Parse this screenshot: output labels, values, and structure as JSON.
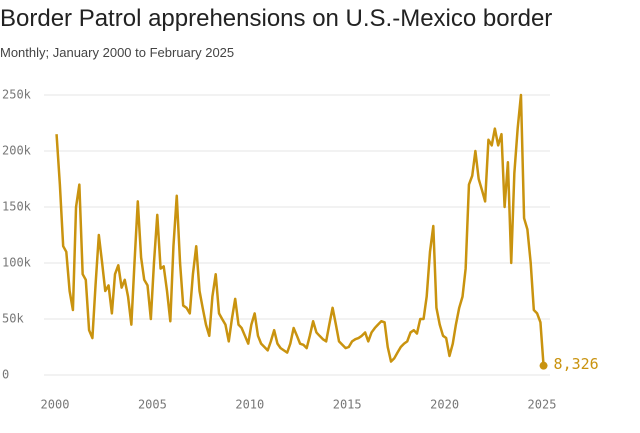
{
  "chart_data": {
    "type": "line",
    "title": "Border Patrol apprehensions on U.S.-Mexico border",
    "subtitle": "Monthly; January 2000 to February 2025",
    "color": "#c9930f",
    "grid": true,
    "xlim": [
      2000,
      2025
    ],
    "xticks": [
      2000,
      2005,
      2010,
      2015,
      2020,
      2025
    ],
    "ylim": [
      0,
      250000
    ],
    "yticks": [
      0,
      {
        "value": 50000,
        "label": "50k"
      },
      {
        "value": 100000,
        "label": "100k"
      },
      {
        "value": 150000,
        "label": "150k"
      },
      {
        "value": 200000,
        "label": "200k"
      },
      {
        "value": 250000,
        "label": "250k"
      }
    ],
    "x": [
      2000.08,
      2000.25,
      2000.42,
      2000.58,
      2000.75,
      2000.92,
      2001.08,
      2001.25,
      2001.42,
      2001.58,
      2001.75,
      2001.92,
      2002.08,
      2002.25,
      2002.42,
      2002.58,
      2002.75,
      2002.92,
      2003.08,
      2003.25,
      2003.42,
      2003.58,
      2003.75,
      2003.92,
      2004.08,
      2004.25,
      2004.42,
      2004.58,
      2004.75,
      2004.92,
      2005.08,
      2005.25,
      2005.42,
      2005.58,
      2005.75,
      2005.92,
      2006.08,
      2006.25,
      2006.42,
      2006.58,
      2006.75,
      2006.92,
      2007.08,
      2007.25,
      2007.42,
      2007.58,
      2007.75,
      2007.92,
      2008.08,
      2008.25,
      2008.42,
      2008.58,
      2008.75,
      2008.92,
      2009.08,
      2009.25,
      2009.42,
      2009.58,
      2009.75,
      2009.92,
      2010.08,
      2010.25,
      2010.42,
      2010.58,
      2010.75,
      2010.92,
      2011.08,
      2011.25,
      2011.42,
      2011.58,
      2011.75,
      2011.92,
      2012.08,
      2012.25,
      2012.42,
      2012.58,
      2012.75,
      2012.92,
      2013.08,
      2013.25,
      2013.42,
      2013.58,
      2013.75,
      2013.92,
      2014.08,
      2014.25,
      2014.42,
      2014.58,
      2014.75,
      2014.92,
      2015.08,
      2015.25,
      2015.42,
      2015.58,
      2015.75,
      2015.92,
      2016.08,
      2016.25,
      2016.42,
      2016.58,
      2016.75,
      2016.92,
      2017.08,
      2017.25,
      2017.42,
      2017.58,
      2017.75,
      2017.92,
      2018.08,
      2018.25,
      2018.42,
      2018.58,
      2018.75,
      2018.92,
      2019.08,
      2019.25,
      2019.42,
      2019.58,
      2019.75,
      2019.92,
      2020.08,
      2020.25,
      2020.42,
      2020.58,
      2020.75,
      2020.92,
      2021.08,
      2021.25,
      2021.42,
      2021.58,
      2021.75,
      2021.92,
      2022.08,
      2022.25,
      2022.42,
      2022.58,
      2022.75,
      2022.92,
      2023.08,
      2023.25,
      2023.42,
      2023.58,
      2023.75,
      2023.92,
      2024.08,
      2024.25,
      2024.42,
      2024.58,
      2024.75,
      2024.92,
      2025.08
    ],
    "values": [
      215000,
      170000,
      115000,
      110000,
      75000,
      58000,
      150000,
      170000,
      90000,
      85000,
      40000,
      33000,
      80000,
      125000,
      100000,
      75000,
      80000,
      55000,
      90000,
      98000,
      78000,
      85000,
      70000,
      45000,
      100000,
      155000,
      105000,
      85000,
      80000,
      50000,
      100000,
      143000,
      95000,
      97000,
      75000,
      48000,
      115000,
      160000,
      100000,
      62000,
      60000,
      55000,
      90000,
      115000,
      75000,
      60000,
      45000,
      35000,
      70000,
      90000,
      55000,
      50000,
      45000,
      30000,
      50000,
      68000,
      45000,
      42000,
      35000,
      28000,
      45000,
      55000,
      35000,
      28000,
      25000,
      22000,
      30000,
      40000,
      28000,
      24000,
      22000,
      20000,
      28000,
      42000,
      35000,
      28000,
      27000,
      24000,
      35000,
      48000,
      38000,
      35000,
      32000,
      30000,
      45000,
      60000,
      45000,
      30000,
      27000,
      24000,
      25000,
      30000,
      32000,
      33000,
      35000,
      38000,
      30000,
      38000,
      42000,
      45000,
      48000,
      47000,
      25000,
      12000,
      15000,
      20000,
      25000,
      28000,
      30000,
      38000,
      40000,
      37000,
      50000,
      50000,
      70000,
      110000,
      133000,
      60000,
      45000,
      35000,
      33000,
      17000,
      28000,
      45000,
      60000,
      70000,
      95000,
      170000,
      178000,
      200000,
      175000,
      165000,
      155000,
      210000,
      205000,
      220000,
      205000,
      215000,
      150000,
      190000,
      100000,
      180000,
      220000,
      250000,
      140000,
      130000,
      100000,
      58000,
      55000,
      47000,
      8326
    ],
    "value_labels": [
      null,
      null,
      null,
      null,
      null,
      null,
      null,
      null,
      null,
      null,
      null,
      null,
      null,
      null,
      null,
      null,
      null,
      null,
      null,
      null,
      null,
      null,
      null,
      null,
      null,
      null,
      null,
      null,
      null,
      null,
      null,
      null,
      null,
      null,
      null,
      null,
      null,
      null,
      null,
      null,
      null,
      null,
      null,
      null,
      null,
      null,
      null,
      null,
      null,
      null,
      null,
      null,
      null,
      null,
      null,
      null,
      null,
      null,
      null,
      null,
      null,
      null,
      null,
      null,
      null,
      null,
      null,
      null,
      null,
      null,
      null,
      null,
      null,
      null,
      null,
      null,
      null,
      null,
      null,
      null,
      null,
      null,
      null,
      null,
      null,
      null,
      null,
      null,
      null,
      null,
      null,
      null,
      null,
      null,
      null,
      null,
      null,
      null,
      null,
      null,
      null,
      null,
      null,
      null,
      null,
      null,
      null,
      null,
      null,
      null,
      null,
      null,
      null,
      null,
      null,
      null,
      null,
      null,
      null,
      null,
      null,
      null,
      null,
      null,
      null,
      null,
      null,
      null,
      null,
      null,
      null,
      null,
      null,
      null,
      null,
      null,
      null,
      null,
      null,
      null,
      null,
      null,
      null,
      null,
      null,
      null,
      null,
      null,
      null,
      null,
      "8,326"
    ]
  }
}
